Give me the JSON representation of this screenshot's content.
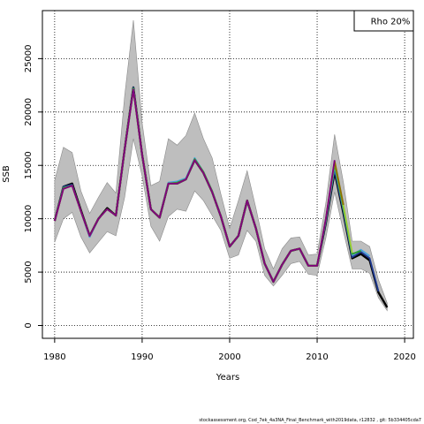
{
  "chart_data": {
    "type": "line",
    "title": "",
    "xlabel": "Years",
    "ylabel": "SSB",
    "xlim": [
      1978.6,
      2021.0
    ],
    "ylim": [
      -1200,
      29500
    ],
    "x_ticks": [
      1980,
      1990,
      2000,
      2010,
      2020
    ],
    "y_ticks": [
      0,
      5000,
      10000,
      15000,
      20000,
      25000
    ],
    "grid": "dotted",
    "legend": {
      "position": "top-right",
      "text": "Rho 20%"
    },
    "colors": {
      "band": "#bebebe",
      "band_edge": "#8a8a8a",
      "series": [
        "#000000",
        "#1f3a93",
        "#4aa3df",
        "#2ca02c",
        "#9acd32",
        "#8b6f00",
        "#800080"
      ]
    },
    "confidence_band": {
      "x": [
        1980,
        1981,
        1982,
        1983,
        1984,
        1985,
        1986,
        1987,
        1988,
        1989,
        1990,
        1991,
        1992,
        1993,
        1994,
        1995,
        1996,
        1997,
        1998,
        1999,
        2000,
        2001,
        2002,
        2003,
        2004,
        2005,
        2006,
        2007,
        2008,
        2009,
        2010,
        2011,
        2012,
        2013,
        2014,
        2015,
        2016,
        2017,
        2018
      ],
      "lower": [
        7800,
        10000,
        10600,
        8300,
        6800,
        7800,
        8800,
        8400,
        12000,
        17500,
        14000,
        9300,
        7900,
        10200,
        10900,
        10700,
        12600,
        11700,
        10300,
        8900,
        6300,
        6600,
        8900,
        7900,
        4700,
        3700,
        4700,
        5800,
        6000,
        4800,
        4700,
        8200,
        12500,
        8800,
        5300,
        5300,
        4900,
        2600,
        1400
      ],
      "upper": [
        13600,
        16700,
        16200,
        12600,
        10500,
        12000,
        13400,
        12400,
        21500,
        28600,
        19000,
        13100,
        13500,
        17500,
        16900,
        17800,
        19900,
        17500,
        15700,
        12300,
        9100,
        11700,
        14500,
        11000,
        7200,
        5300,
        7200,
        8200,
        8300,
        6600,
        6700,
        11500,
        17900,
        13400,
        7900,
        7900,
        7400,
        4300,
        2100
      ]
    },
    "series": [
      {
        "x": [
          1980,
          1981,
          1982,
          1983,
          1984,
          1985,
          1986,
          1987,
          1988,
          1989,
          1990,
          1991,
          1992,
          1993,
          1994,
          1995,
          1996,
          1997,
          1998,
          1999,
          2000,
          2001,
          2002,
          2003,
          2004,
          2005,
          2006,
          2007,
          2008,
          2009,
          2010,
          2011,
          2012,
          2013,
          2014,
          2015,
          2016,
          2017,
          2018
        ],
        "values": [
          9800,
          13000,
          13300,
          10800,
          8400,
          10000,
          11000,
          10300,
          16500,
          22300,
          16000,
          10900,
          10100,
          13300,
          13300,
          13700,
          15500,
          14300,
          12500,
          10200,
          7400,
          8400,
          11700,
          9100,
          5800,
          4100,
          5700,
          7000,
          7200,
          5600,
          5600,
          9600,
          14400,
          10500,
          6300,
          6700,
          6100,
          3100,
          1700
        ]
      },
      {
        "x": [
          1980,
          1981,
          1982,
          1983,
          1984,
          1985,
          1986,
          1987,
          1988,
          1989,
          1990,
          1991,
          1992,
          1993,
          1994,
          1995,
          1996,
          1997,
          1998,
          1999,
          2000,
          2001,
          2002,
          2003,
          2004,
          2005,
          2006,
          2007,
          2008,
          2009,
          2010,
          2011,
          2012,
          2013,
          2014,
          2015,
          2016,
          2017
        ],
        "values": [
          9800,
          13000,
          13200,
          10700,
          8300,
          10000,
          10900,
          10300,
          16500,
          22300,
          16000,
          10900,
          10100,
          13300,
          13300,
          13700,
          15500,
          14300,
          12500,
          10200,
          7400,
          8400,
          11700,
          9100,
          5800,
          4100,
          5700,
          7000,
          7200,
          5600,
          5600,
          9700,
          14600,
          10700,
          6400,
          6900,
          6300,
          3200
        ]
      },
      {
        "x": [
          1980,
          1981,
          1982,
          1983,
          1984,
          1985,
          1986,
          1987,
          1988,
          1989,
          1990,
          1991,
          1992,
          1993,
          1994,
          1995,
          1996,
          1997,
          1998,
          1999,
          2000,
          2001,
          2002,
          2003,
          2004,
          2005,
          2006,
          2007,
          2008,
          2009,
          2010,
          2011,
          2012,
          2013,
          2014,
          2015,
          2016
        ],
        "values": [
          9800,
          12900,
          13100,
          10700,
          8300,
          10000,
          10900,
          10300,
          16500,
          22200,
          16000,
          10900,
          10100,
          13400,
          13500,
          13800,
          15700,
          14400,
          12600,
          10200,
          7400,
          8400,
          11700,
          9100,
          5800,
          4100,
          5700,
          7000,
          7200,
          5600,
          5600,
          9800,
          14900,
          10900,
          6600,
          7100,
          6500
        ]
      },
      {
        "x": [
          1980,
          1981,
          1982,
          1983,
          1984,
          1985,
          1986,
          1987,
          1988,
          1989,
          1990,
          1991,
          1992,
          1993,
          1994,
          1995,
          1996,
          1997,
          1998,
          1999,
          2000,
          2001,
          2002,
          2003,
          2004,
          2005,
          2006,
          2007,
          2008,
          2009,
          2010,
          2011,
          2012,
          2013,
          2014,
          2015
        ],
        "values": [
          9800,
          12900,
          13100,
          10700,
          8400,
          10000,
          10900,
          10300,
          16500,
          22200,
          16000,
          10900,
          10100,
          13300,
          13400,
          13700,
          15600,
          14400,
          12600,
          10200,
          7400,
          8400,
          11700,
          9100,
          5800,
          4100,
          5700,
          7000,
          7200,
          5600,
          5600,
          9900,
          15100,
          11000,
          6700,
          7000
        ]
      },
      {
        "x": [
          1980,
          1981,
          1982,
          1983,
          1984,
          1985,
          1986,
          1987,
          1988,
          1989,
          1990,
          1991,
          1992,
          1993,
          1994,
          1995,
          1996,
          1997,
          1998,
          1999,
          2000,
          2001,
          2002,
          2003,
          2004,
          2005,
          2006,
          2007,
          2008,
          2009,
          2010,
          2011,
          2012,
          2013,
          2014
        ],
        "values": [
          9800,
          12800,
          13100,
          10700,
          8400,
          10000,
          10900,
          10300,
          16500,
          22100,
          16000,
          10900,
          10100,
          13300,
          13300,
          13700,
          15500,
          14300,
          12500,
          10200,
          7400,
          8400,
          11700,
          9100,
          5800,
          4100,
          5700,
          7000,
          7200,
          5600,
          5600,
          10000,
          15300,
          11200,
          6800
        ]
      },
      {
        "x": [
          1980,
          1981,
          1982,
          1983,
          1984,
          1985,
          1986,
          1987,
          1988,
          1989,
          1990,
          1991,
          1992,
          1993,
          1994,
          1995,
          1996,
          1997,
          1998,
          1999,
          2000,
          2001,
          2002,
          2003,
          2004,
          2005,
          2006,
          2007,
          2008,
          2009,
          2010,
          2011,
          2012,
          2013
        ],
        "values": [
          9800,
          12800,
          13100,
          10700,
          8400,
          10000,
          10900,
          10300,
          16500,
          22100,
          16000,
          10900,
          10100,
          13300,
          13300,
          13700,
          15500,
          14300,
          12500,
          10200,
          7400,
          8400,
          11700,
          9100,
          5800,
          4100,
          5700,
          7000,
          7200,
          5600,
          5600,
          10000,
          15400,
          11300
        ]
      },
      {
        "x": [
          1980,
          1981,
          1982,
          1983,
          1984,
          1985,
          1986,
          1987,
          1988,
          1989,
          1990,
          1991,
          1992,
          1993,
          1994,
          1995,
          1996,
          1997,
          1998,
          1999,
          2000,
          2001,
          2002,
          2003,
          2004,
          2005,
          2006,
          2007,
          2008,
          2009,
          2010,
          2011,
          2012
        ],
        "values": [
          9800,
          12800,
          13100,
          10700,
          8400,
          10000,
          10900,
          10300,
          16500,
          22100,
          16000,
          10900,
          10100,
          13300,
          13300,
          13700,
          15500,
          14300,
          12500,
          10200,
          7400,
          8400,
          11700,
          9100,
          5800,
          4100,
          5700,
          7000,
          7200,
          5600,
          5600,
          10000,
          15500
        ]
      }
    ]
  },
  "footer": "stockassessment.org,  Cod_7ek_4a3NA_Final_Benchmark_with2019data,  r12832 ,  git: 5b334405cda7"
}
